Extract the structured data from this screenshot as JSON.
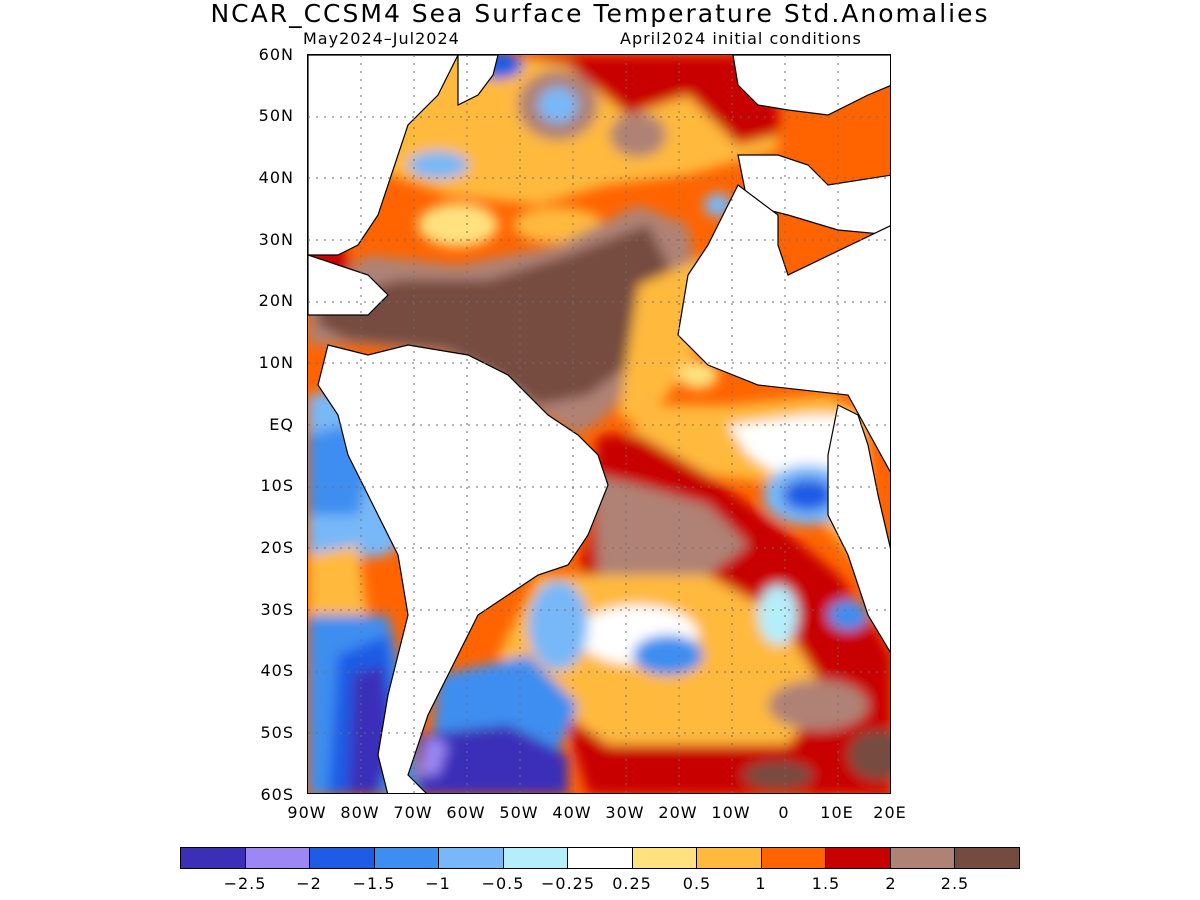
{
  "title": "NCAR_CCSM4 Sea Surface Temperature Std.Anomalies",
  "subtitle_left": "May2024–Jul2024",
  "subtitle_right": "April2024 initial conditions",
  "lat_labels": [
    "60N",
    "50N",
    "40N",
    "30N",
    "20N",
    "10N",
    "EQ",
    "10S",
    "20S",
    "30S",
    "40S",
    "50S",
    "60S"
  ],
  "lon_labels": [
    "90W",
    "80W",
    "70W",
    "60W",
    "50W",
    "40W",
    "30W",
    "20W",
    "10W",
    "0",
    "10E",
    "20E"
  ],
  "colorbar": {
    "colors": [
      "#3b2fb8",
      "#9c87f4",
      "#1e5ce6",
      "#3c8ef0",
      "#78b8f8",
      "#b4eefa",
      "#ffffff",
      "#ffe17e",
      "#ffb93c",
      "#ff6400",
      "#c80000",
      "#af8275",
      "#764b3f"
    ],
    "labels": [
      "−2.5",
      "−2",
      "−1.5",
      "−1",
      "−0.5",
      "−0.25",
      "0.25",
      "0.5",
      "1",
      "1.5",
      "2",
      "2.5"
    ]
  }
}
